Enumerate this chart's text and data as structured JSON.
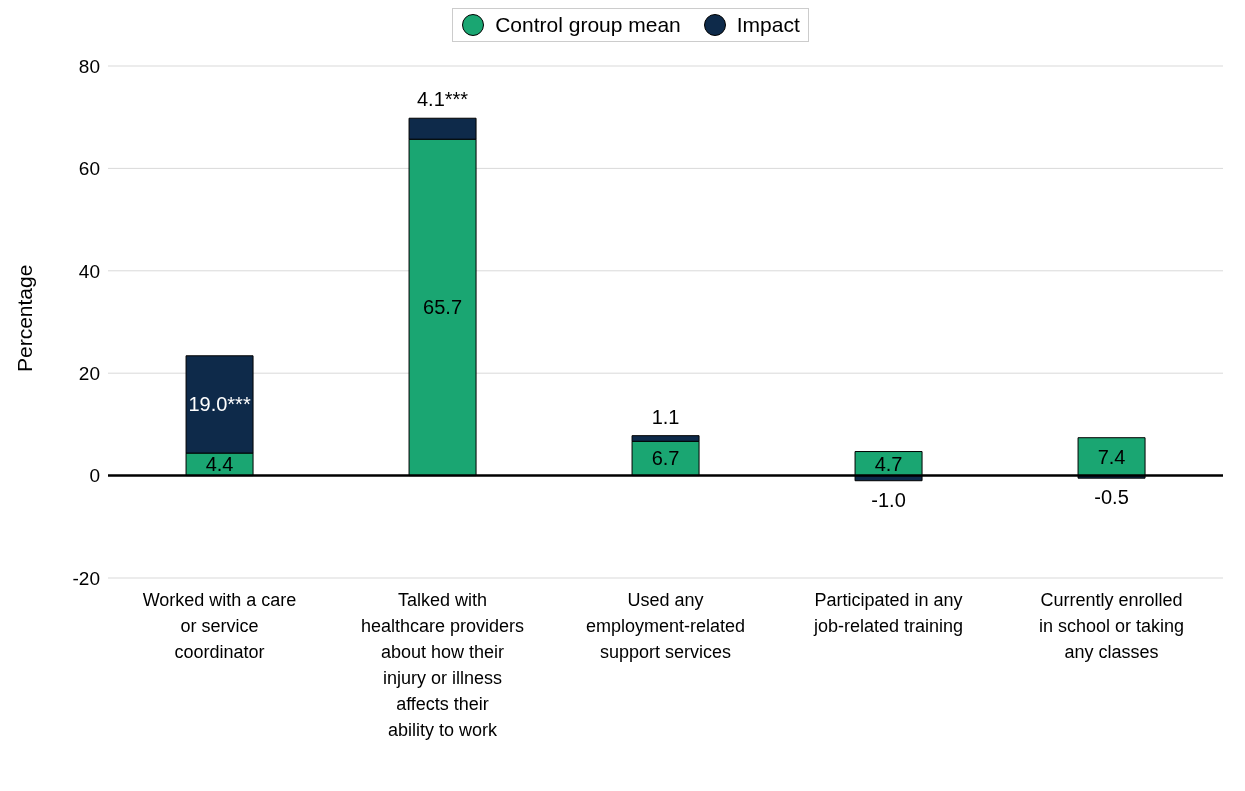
{
  "chart_data": {
    "type": "bar",
    "stacked": true,
    "ylabel": "Percentage",
    "categories": [
      "Worked with a care or service coordinator",
      "Talked with healthcare providers about how their injury or illness affects their ability to work",
      "Used any employment-related support services",
      "Participated in any job-related training",
      "Currently enrolled in school or taking any classes"
    ],
    "series": [
      {
        "name": "Control group mean",
        "color": "#1aa672",
        "values": [
          4.4,
          65.7,
          6.7,
          4.7,
          7.4
        ],
        "value_labels": [
          "4.4",
          "65.7",
          "6.7",
          "4.7",
          "7.4"
        ]
      },
      {
        "name": "Impact",
        "color": "#0e2a4a",
        "values": [
          19.0,
          4.1,
          1.1,
          -1.0,
          -0.5
        ],
        "value_labels": [
          "19.0***",
          "4.1***",
          "1.1",
          "-1.0",
          "-0.5"
        ]
      }
    ],
    "ylim": [
      -20,
      80
    ],
    "yticks": [
      -20,
      0,
      20,
      40,
      60,
      80
    ],
    "grid": "y",
    "legend": "top"
  }
}
